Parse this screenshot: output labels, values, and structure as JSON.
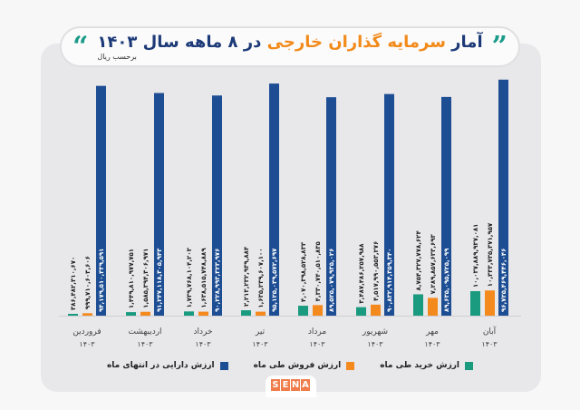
{
  "title": {
    "part1": "آمار",
    "highlight": "سرمایه گذاران خارجی",
    "part2": "در ۸ ماهه سال ۱۴۰۳",
    "subtitle": "برحسب ریال"
  },
  "icons": {
    "quote_open": "quote-icon",
    "quote_close": "quote-icon"
  },
  "colors": {
    "buy": "#1a9a7f",
    "sell": "#f48a1e",
    "assets": "#1d4e93",
    "title": "#1d3a78",
    "highlight": "#f28a1a"
  },
  "chart_data": {
    "type": "bar",
    "title": "آمار سرمایه گذاران خارجی در ۸ ماهه سال ۱۴۰۳",
    "unit": "برحسب ریال",
    "categories": [
      "فروردین",
      "اردیبهشت",
      "خرداد",
      "تیر",
      "مرداد",
      "شهریور",
      "مهر",
      "آبان"
    ],
    "year_label": "۱۴۰۳",
    "legend_position": "bottom",
    "grid": false,
    "series": [
      {
        "name": "ارزش خرید طی ماه",
        "color": "#1a9a7f",
        "values": [
          386482310670,
          1449810977751,
          1739768104203,
          2213232939884,
          4070398528833,
          3487486257988,
          8754327778624,
          10037889937081
        ],
        "labels": [
          "۳۸۶,۴۸۲,۳۱۰,۶۷۰",
          "۱,۴۴۹,۸۱۰,۹۷۷,۷۵۱",
          "۱,۷۳۹,۷۶۸,۱۰۴,۲۰۳",
          "۲,۲۱۳,۲۳۲,۹۳۹,۸۸۴",
          "۴,۰۷۰,۳۹۸,۵۲۸,۸۳۳",
          "۳,۴۸۷,۴۸۶,۲۵۷,۹۸۸",
          "۸,۷۵۴,۳۲۷,۷۷۸,۶۲۴",
          "۱۰,۰۳۷,۸۸۹,۹۳۷,۰۸۱"
        ]
      },
      {
        "name": "ارزش فروش طی ماه",
        "color": "#f48a1e",
        "values": [
          999710603606,
          1585394306971,
          1638515748889,
          1635239607100,
          4330740510835,
          4517990553276,
          7289857633693,
          10333735371957
        ],
        "labels": [
          "۹۹۹,۷۱۰,۶۰۳,۶۰۶",
          "۱,۵۸۵,۳۹۴,۳۰۶,۹۷۱",
          "۱,۶۳۸,۵۱۵,۷۴۸,۸۸۹",
          "۱,۶۳۵,۲۳۹,۶۰۷,۱۰۰",
          "۴,۳۳۰,۷۴۰,۵۱۰,۸۳۵",
          "۴,۵۱۷,۹۹۰,۵۵۳,۲۷۶",
          "۷,۲۸۹,۸۵۷,۶۳۳,۶۹۳",
          "۱۰,۳۳۳,۷۳۵,۳۷۱,۹۵۷"
        ]
      },
      {
        "name": "ارزش دارایی در انتهای ماه",
        "color": "#1d4e93",
        "values": [
          94179510339591,
          91247118305943,
          90228993323976,
          95125039572697,
          89525079935026,
          90832914359340,
          89635095725099,
          96725469446046
        ],
        "labels": [
          "۹۴,۱۷۹,۵۱۰,۳۳۹,۵۹۱",
          "۹۱,۲۴۷,۱۱۸,۳۰۵,۹۴۳",
          "۹۰,۲۲۸,۹۹۳,۳۲۳,۹۷۶",
          "۹۵,۱۲۵,۰۳۹,۵۷۲,۶۹۷",
          "۸۹,۵۲۵,۰۷۹,۹۳۵,۰۲۶",
          "۹۰,۸۳۲,۹۱۴,۳۵۹,۳۴۰",
          "۸۹,۶۳۵,۰۹۵,۷۲۵,۰۹۹",
          "۹۶,۷۲۵,۴۶۹,۴۴۶,۰۴۶"
        ]
      }
    ]
  },
  "logo": {
    "text": "SENA"
  }
}
